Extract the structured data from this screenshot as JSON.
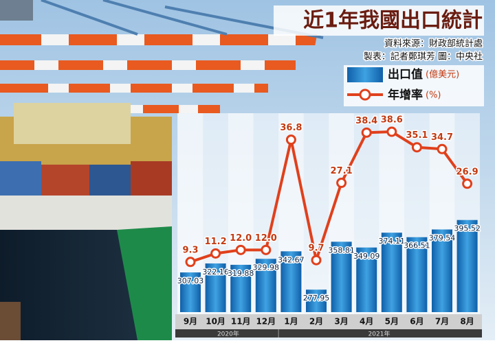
{
  "chart_data": {
    "type": "bar_line",
    "title": "近1年我國出口統計",
    "source": "資料來源：財政部統計處",
    "credit": "製表：記者鄭琪芳  圖：中央社",
    "categories": [
      "9月",
      "10月",
      "11月",
      "12月",
      "1月",
      "2月",
      "3月",
      "4月",
      "5月",
      "6月",
      "7月",
      "8月"
    ],
    "groups": [
      {
        "label": "2020年",
        "count": 4
      },
      {
        "label": "2021年",
        "count": 8
      }
    ],
    "series": [
      {
        "name": "出口值",
        "unit": "(億美元)",
        "color": "#1f7fc4",
        "type": "bar",
        "values": [
          307.03,
          322.16,
          319.88,
          329.98,
          342.67,
          277.95,
          358.81,
          349.09,
          374.11,
          366.51,
          379.54,
          395.52
        ]
      },
      {
        "name": "年增率",
        "unit": "(%)",
        "color": "#e0401c",
        "type": "line",
        "axis": "y2",
        "values": [
          9.3,
          11.2,
          12.0,
          12.0,
          36.8,
          9.7,
          27.1,
          38.4,
          38.6,
          35.1,
          34.7,
          26.9
        ],
        "value_labels": [
          "9.3",
          "11.2",
          "12.0",
          "12.0",
          "36.8",
          "9.7",
          "27.1",
          "38.4",
          "38.6",
          "35.1",
          "34.7",
          "26.9"
        ]
      }
    ],
    "ylim": [
      240,
      570
    ],
    "y2lim": [
      -2,
      42
    ]
  }
}
